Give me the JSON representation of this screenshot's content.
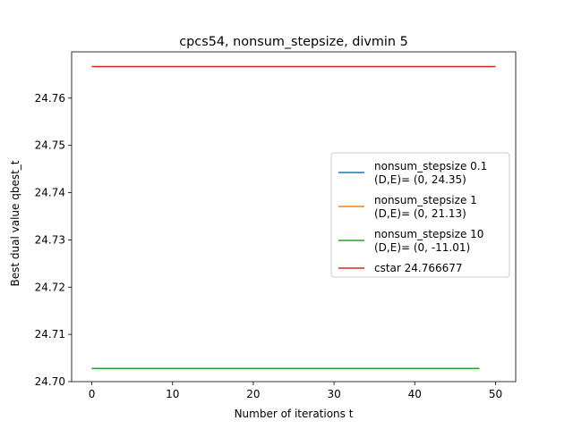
{
  "chart_data": {
    "type": "line",
    "title": "cpcs54, nonsum_stepsize, divmin 5",
    "xlabel": "Number of iterations t",
    "ylabel": "Best dual value qbest_t",
    "xlim": [
      -2.5,
      52.5
    ],
    "ylim": [
      24.7,
      24.7698
    ],
    "xticks": [
      0,
      10,
      20,
      30,
      40,
      50
    ],
    "yticks": [
      24.7,
      24.71,
      24.72,
      24.73,
      24.74,
      24.75,
      24.76
    ],
    "xtick_labels": [
      "0",
      "10",
      "20",
      "30",
      "40",
      "50"
    ],
    "ytick_labels": [
      "24.70",
      "24.71",
      "24.72",
      "24.73",
      "24.74",
      "24.75",
      "24.76"
    ],
    "grid": false,
    "legend_position": "center-right",
    "series": [
      {
        "name": "nonsum_stepsize 0.1",
        "detail": "(D,E)= (0, 24.35)",
        "color": "#1f77b4",
        "x": [
          0,
          48
        ],
        "y": [
          24.7028,
          24.7028
        ]
      },
      {
        "name": "nonsum_stepsize 1",
        "detail": "(D,E)= (0, 21.13)",
        "color": "#ff7f0e",
        "x": [
          0,
          48
        ],
        "y": [
          24.7028,
          24.7028
        ]
      },
      {
        "name": "nonsum_stepsize 10",
        "detail": "(D,E)= (0, -11.01)",
        "color": "#2ca02c",
        "x": [
          0,
          48
        ],
        "y": [
          24.7028,
          24.7028
        ]
      },
      {
        "name": "cstar 24.766677",
        "detail": "",
        "color": "#d62728",
        "x": [
          0,
          50
        ],
        "y": [
          24.766677,
          24.766677
        ]
      }
    ]
  }
}
